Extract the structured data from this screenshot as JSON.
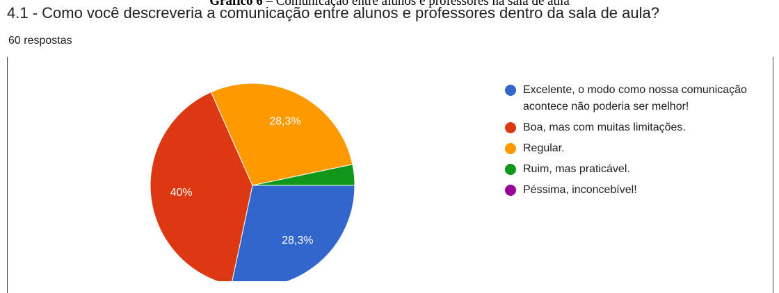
{
  "caption": {
    "label": "Gráfico 6",
    "text": "– Comunicação entre alunos e professores na sala de aula"
  },
  "chart_data": {
    "type": "pie",
    "title": "4.1 - Como você descreveria a comunicação entre alunos e professores dentro da sala de aula?",
    "subtitle": "60 respostas",
    "categories": [
      "Excelente, o modo como nossa comunicação acontece não poderia ser melhor!",
      "Boa, mas com muitas limitações.",
      "Regular.",
      "Ruim, mas praticável.",
      "Péssima, inconcebível!"
    ],
    "values": [
      28.3,
      40,
      28.3,
      3.3,
      0
    ],
    "value_labels": [
      "28,3%",
      "40%",
      "28,3%",
      null,
      null
    ],
    "colors": [
      "#3366cc",
      "#dc3912",
      "#ff9900",
      "#109618",
      "#990099"
    ],
    "legend": "right"
  }
}
